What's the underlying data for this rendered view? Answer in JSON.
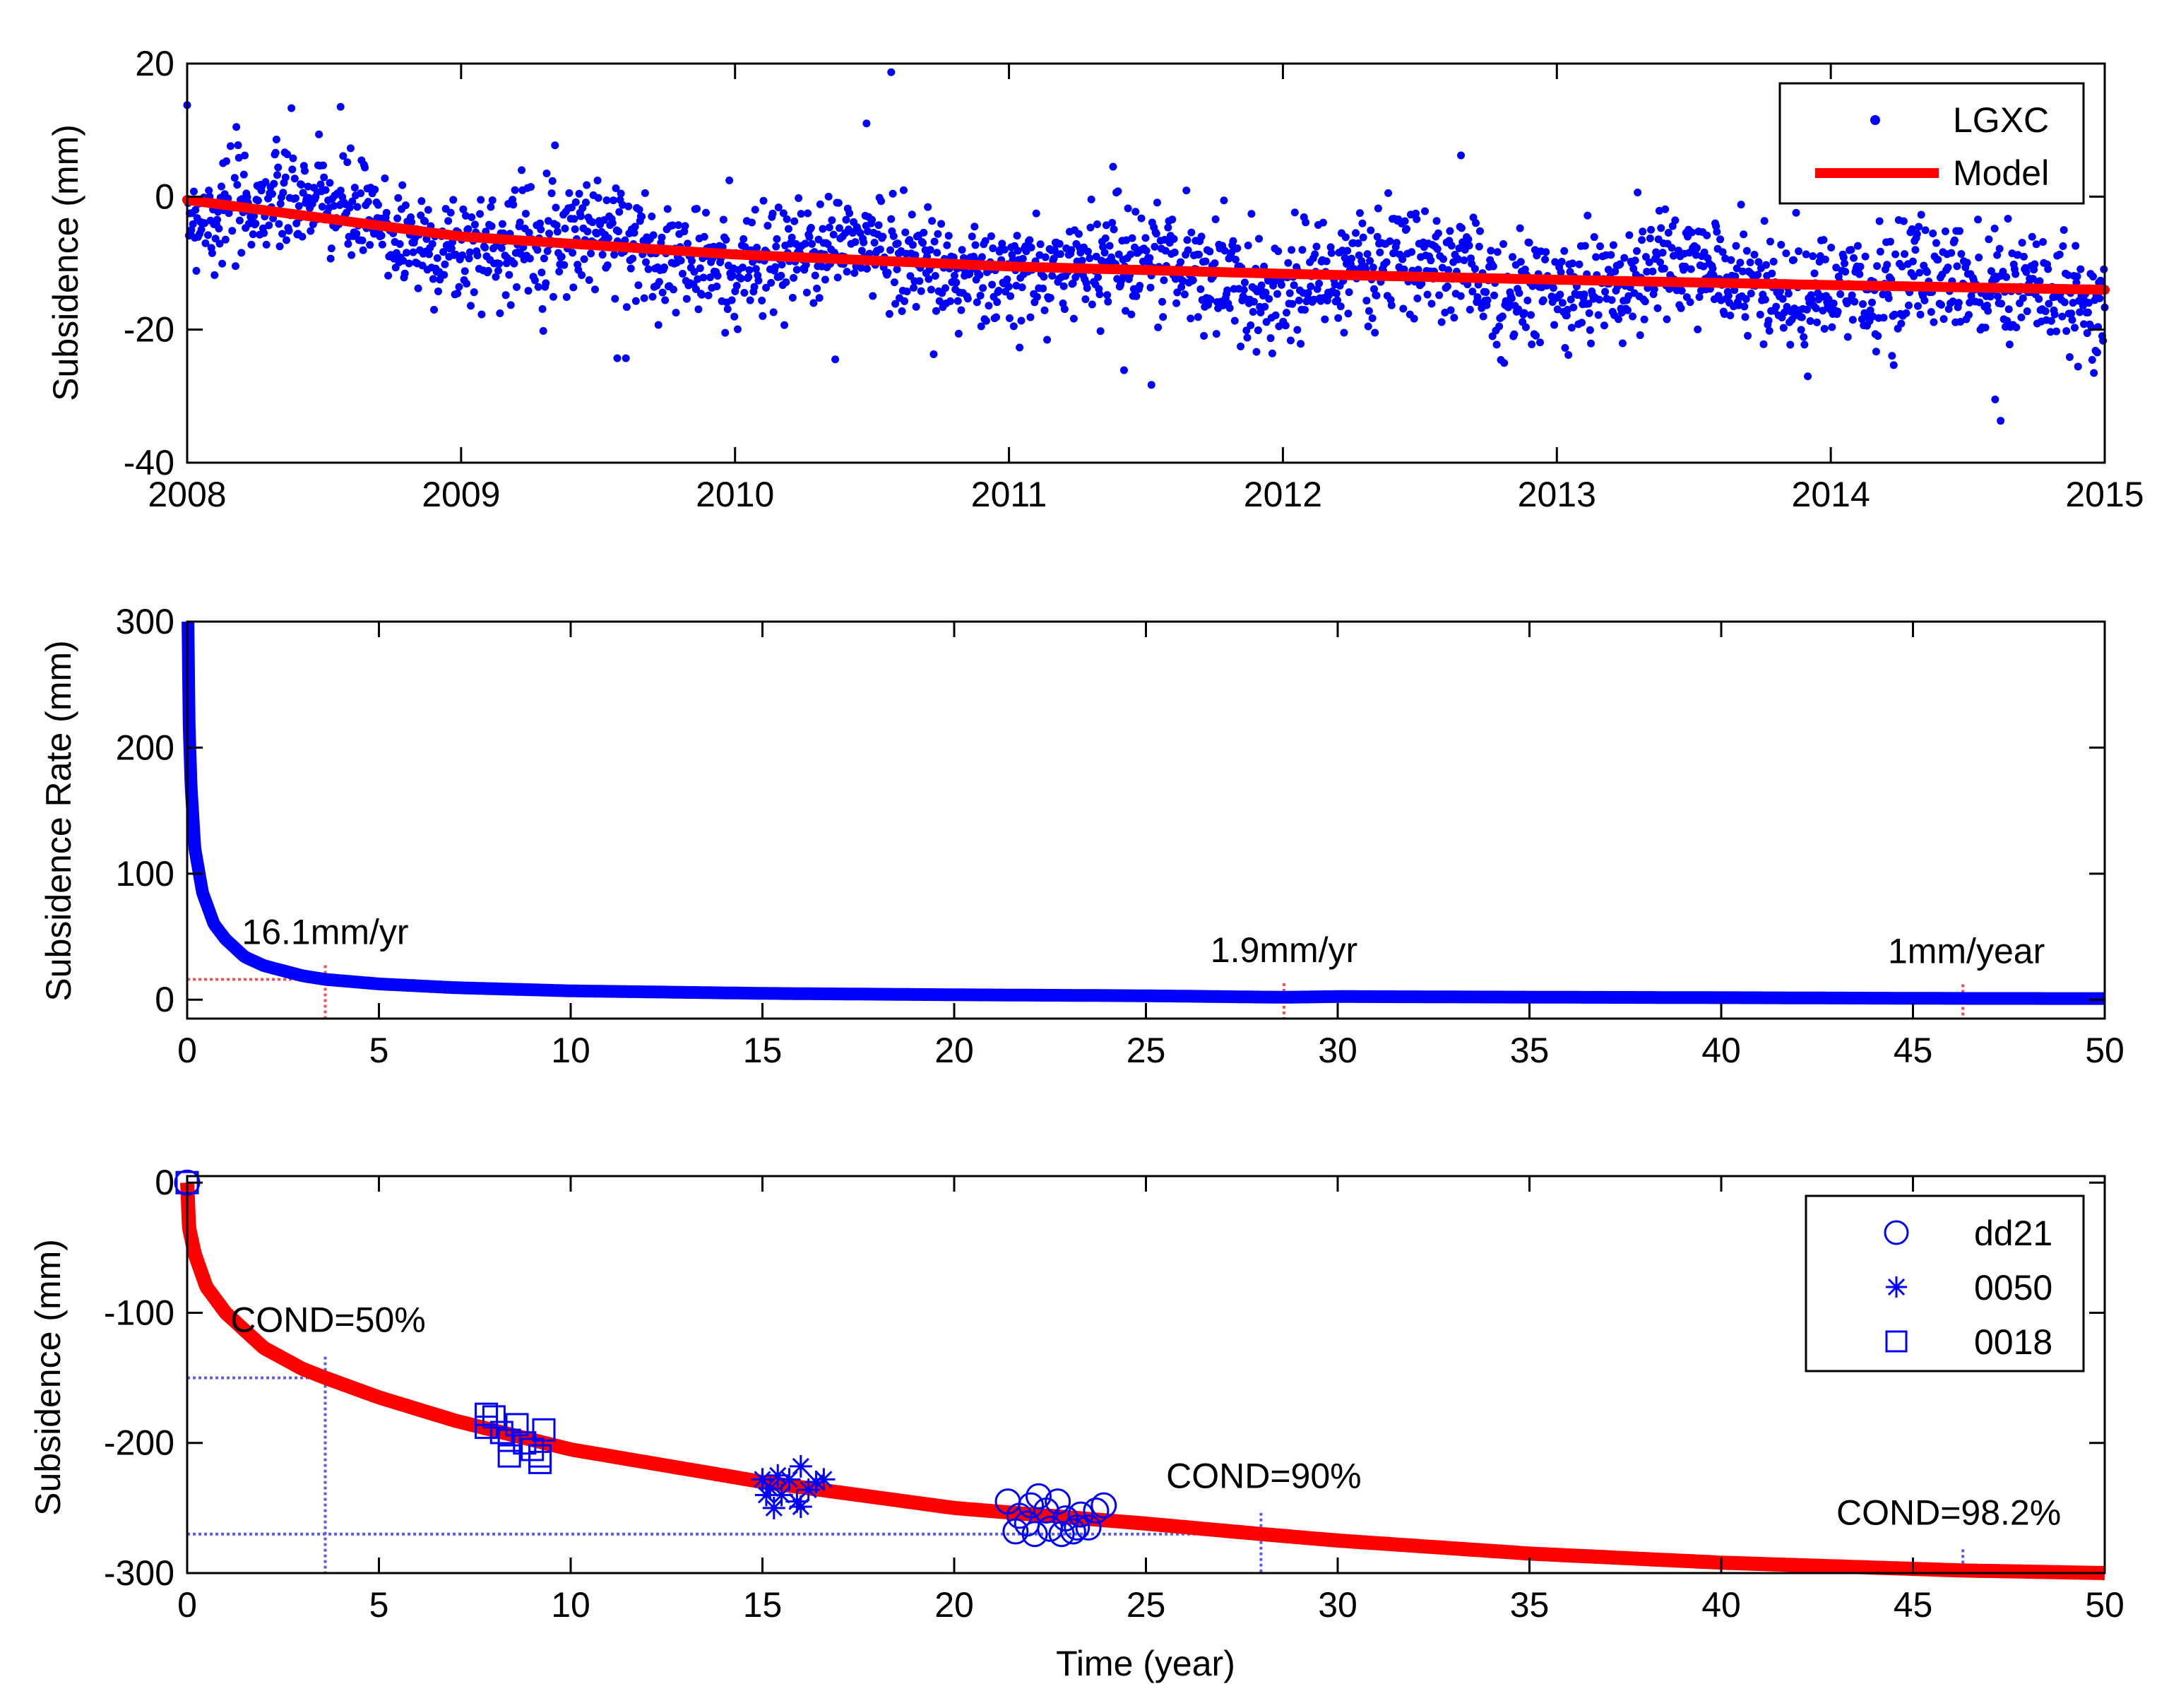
{
  "colors": {
    "points": "#0000ff",
    "model": "#ff0000",
    "axis": "#000000",
    "guide_red": "#ff4d4d",
    "guide_blue": "#5a5aff"
  },
  "chart_data": [
    {
      "type": "scatter",
      "title": "",
      "xlabel": "",
      "ylabel": "Subsidence (mm)",
      "xlim": [
        2008,
        2015
      ],
      "ylim": [
        -40,
        20
      ],
      "x_ticks": [
        "2008",
        "2009",
        "2010",
        "2011",
        "2012",
        "2013",
        "2014",
        "2015"
      ],
      "y_ticks": [
        "-40",
        "-20",
        "0",
        "20"
      ],
      "legend": {
        "position": "top-right",
        "entries": [
          "LGXC",
          "Model"
        ]
      },
      "series": [
        {
          "name": "LGXC",
          "kind": "points",
          "seed": 7,
          "x_start": 2008.0,
          "x_end": 2015.0,
          "count": 2300,
          "noise_std_mm": 4.2,
          "outliers": [
            [
              2008.56,
              13.5
            ],
            [
              2010.57,
              18.7
            ],
            [
              2010.48,
              11.0
            ],
            [
              2009.57,
              -24.3
            ],
            [
              2011.52,
              -28.3
            ],
            [
              2011.42,
              -26.1
            ],
            [
              2014.62,
              -33.7
            ],
            [
              2014.6,
              -30.5
            ],
            [
              2012.65,
              6.2
            ],
            [
              2011.38,
              4.5
            ],
            [
              2008.1,
              -11.8
            ]
          ]
        },
        {
          "name": "Model",
          "kind": "line",
          "model": "logarithmic",
          "points_x": [
            2008.0,
            2009.0,
            2010.0,
            2011.0,
            2012.0,
            2013.0,
            2014.0,
            2015.0
          ],
          "points_y": [
            -0.5,
            -6.0,
            -8.7,
            -10.5,
            -11.6,
            -12.5,
            -13.3,
            -14.0
          ]
        }
      ]
    },
    {
      "type": "line",
      "xlabel": "",
      "ylabel": "Subsidence Rate (mm)",
      "xlim": [
        0,
        50
      ],
      "ylim": [
        -15,
        300
      ],
      "x_ticks": [
        "0",
        "5",
        "10",
        "15",
        "20",
        "25",
        "30",
        "35",
        "40",
        "45",
        "50"
      ],
      "y_ticks": [
        "0",
        "100",
        "200",
        "300"
      ],
      "series": [
        {
          "name": "Rate",
          "x": [
            0.02,
            0.05,
            0.1,
            0.2,
            0.4,
            0.7,
            1.0,
            1.5,
            2.0,
            3.0,
            3.6,
            5.0,
            7.0,
            10.0,
            15.0,
            20.0,
            25.0,
            28.6,
            30.0,
            35.0,
            40.0,
            46.3,
            50.0
          ],
          "y": [
            300,
            220,
            170,
            120,
            85,
            60,
            48,
            34,
            27,
            19,
            16.1,
            12.5,
            9.5,
            7.0,
            5.0,
            3.9,
            3.1,
            1.9,
            2.5,
            2.0,
            1.6,
            1.0,
            0.9
          ]
        }
      ],
      "annotations": [
        {
          "text": "16.1mm/yr",
          "x": 3.6,
          "y": 16.1
        },
        {
          "text": "1.9mm/yr",
          "x": 28.6,
          "y": 1.9
        },
        {
          "text": "1mm/year",
          "x": 46.3,
          "y": 1.0
        }
      ]
    },
    {
      "type": "scatter",
      "xlabel": "Time (year)",
      "ylabel": "Subsidence (mm)",
      "xlim": [
        0,
        50
      ],
      "ylim": [
        -300,
        5
      ],
      "x_ticks": [
        "0",
        "5",
        "10",
        "15",
        "20",
        "25",
        "30",
        "35",
        "40",
        "45",
        "50"
      ],
      "y_ticks": [
        "-300",
        "-200",
        "-100",
        "0"
      ],
      "legend": {
        "position": "top-right",
        "entries": [
          "dd21",
          "0050",
          "0018"
        ]
      },
      "series": [
        {
          "name": "Model",
          "kind": "line",
          "model": "logarithmic",
          "x": [
            0,
            0.05,
            0.2,
            0.5,
            1,
            2,
            3,
            3.6,
            5,
            7,
            10,
            15,
            20,
            25,
            28,
            30,
            35,
            40,
            46.3,
            50
          ],
          "y": [
            0,
            -35,
            -55,
            -80,
            -100,
            -127,
            -143,
            -150,
            -165,
            -183,
            -205,
            -230,
            -250,
            -262,
            -270,
            -275,
            -285,
            -292,
            -298,
            -300
          ]
        },
        {
          "name": "dd21",
          "marker": "circle",
          "points": [
            [
              21.4,
              -245
            ],
            [
              21.7,
              -256
            ],
            [
              21.9,
              -262
            ],
            [
              22.0,
              -248
            ],
            [
              22.2,
              -241
            ],
            [
              22.4,
              -252
            ],
            [
              22.5,
              -266
            ],
            [
              22.7,
              -245
            ],
            [
              22.9,
              -258
            ],
            [
              23.1,
              -268
            ],
            [
              23.3,
              -255
            ],
            [
              23.5,
              -265
            ],
            [
              23.7,
              -252
            ],
            [
              23.9,
              -248
            ],
            [
              21.6,
              -268
            ],
            [
              22.1,
              -270
            ],
            [
              22.8,
              -270
            ],
            [
              23.2,
              -265
            ],
            [
              0.0,
              0.0
            ]
          ]
        },
        {
          "name": "0050",
          "marker": "asterisk",
          "points": [
            [
              15.0,
              -228
            ],
            [
              15.2,
              -235
            ],
            [
              15.3,
              -250
            ],
            [
              15.5,
              -240
            ],
            [
              15.7,
              -228
            ],
            [
              15.9,
              -245
            ],
            [
              16.0,
              -249
            ],
            [
              16.2,
              -236
            ],
            [
              16.4,
              -230
            ],
            [
              16.6,
              -228
            ],
            [
              16.0,
              -218
            ],
            [
              15.4,
              -225
            ],
            [
              15.1,
              -240
            ]
          ]
        },
        {
          "name": "0018",
          "marker": "square",
          "points": [
            [
              7.8,
              -188
            ],
            [
              8.0,
              -180
            ],
            [
              8.2,
              -192
            ],
            [
              8.4,
              -198
            ],
            [
              8.6,
              -186
            ],
            [
              8.8,
              -200
            ],
            [
              9.0,
              -205
            ],
            [
              9.2,
              -210
            ],
            [
              9.3,
              -190
            ],
            [
              9.2,
              -215
            ],
            [
              8.4,
              -210
            ],
            [
              7.8,
              -178
            ],
            [
              0.0,
              0.0
            ]
          ]
        }
      ],
      "annotations": [
        {
          "text": "COND=50%",
          "x": 3.6,
          "y": -150
        },
        {
          "text": "COND=90%",
          "x": 28.0,
          "y": -270
        },
        {
          "text": "COND=98.2%",
          "x": 46.3,
          "y": -298
        }
      ]
    }
  ]
}
